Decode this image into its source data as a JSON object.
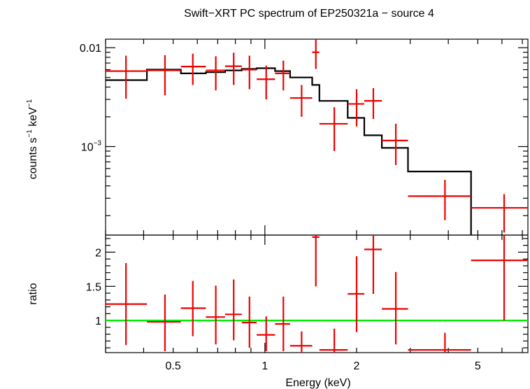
{
  "title": "Swift−XRT PC spectrum of EP250321a − source 4",
  "xlabel": "Energy (keV)",
  "colors": {
    "data": "#ee0000",
    "model": "#000000",
    "unity": "#00ee00",
    "frame": "#000000"
  },
  "chart_data": [
    {
      "type": "line",
      "panel": "spectrum",
      "ylabel_parts": [
        "counts s",
        "−1",
        " keV",
        "−1"
      ],
      "xscale": "log",
      "yscale": "log",
      "xlim": [
        0.3,
        7.3
      ],
      "ylim": [
        0.0001272,
        0.0122
      ],
      "x_ticks": [
        0.5,
        1,
        2,
        5
      ],
      "y_ticks": [
        {
          "value": 0.01,
          "label": "0.01"
        },
        {
          "value": 0.001,
          "base": "10",
          "exp": "−3"
        }
      ],
      "series": [
        {
          "kind": "data",
          "points": [
            {
              "xlo": 0.3,
              "xhi": 0.41,
              "x": 0.35,
              "y": 0.0058,
              "ylo": 0.00305,
              "yhi": 0.0083
            },
            {
              "xlo": 0.41,
              "xhi": 0.53,
              "x": 0.47,
              "y": 0.0059,
              "ylo": 0.0033,
              "yhi": 0.0084
            },
            {
              "xlo": 0.53,
              "xhi": 0.64,
              "x": 0.58,
              "y": 0.00645,
              "ylo": 0.0042,
              "yhi": 0.0087
            },
            {
              "xlo": 0.64,
              "xhi": 0.74,
              "x": 0.69,
              "y": 0.0059,
              "ylo": 0.0037,
              "yhi": 0.0082
            },
            {
              "xlo": 0.74,
              "xhi": 0.84,
              "x": 0.79,
              "y": 0.0065,
              "ylo": 0.0042,
              "yhi": 0.0089
            },
            {
              "xlo": 0.84,
              "xhi": 0.94,
              "x": 0.89,
              "y": 0.006,
              "ylo": 0.0038,
              "yhi": 0.0083
            },
            {
              "xlo": 0.94,
              "xhi": 1.08,
              "x": 1.01,
              "y": 0.0048,
              "ylo": 0.003,
              "yhi": 0.0066
            },
            {
              "xlo": 1.08,
              "xhi": 1.21,
              "x": 1.15,
              "y": 0.0055,
              "ylo": 0.0037,
              "yhi": 0.0074
            },
            {
              "xlo": 1.21,
              "xhi": 1.43,
              "x": 1.32,
              "y": 0.0031,
              "ylo": 0.002,
              "yhi": 0.0042
            },
            {
              "xlo": 1.43,
              "xhi": 1.51,
              "x": 1.47,
              "y": 0.009,
              "ylo": 0.0061,
              "yhi": 0.0122
            },
            {
              "xlo": 1.51,
              "xhi": 1.87,
              "x": 1.69,
              "y": 0.0017,
              "ylo": 0.0009,
              "yhi": 0.0025
            },
            {
              "xlo": 1.87,
              "xhi": 2.12,
              "x": 2.0,
              "y": 0.0027,
              "ylo": 0.0016,
              "yhi": 0.0038
            },
            {
              "xlo": 2.12,
              "xhi": 2.42,
              "x": 2.27,
              "y": 0.0029,
              "ylo": 0.0019,
              "yhi": 0.0039
            },
            {
              "xlo": 2.42,
              "xhi": 2.95,
              "x": 2.69,
              "y": 0.00115,
              "ylo": 0.00065,
              "yhi": 0.0017
            },
            {
              "xlo": 2.95,
              "xhi": 4.75,
              "x": 3.9,
              "y": 0.000315,
              "ylo": 0.00018,
              "yhi": 0.00046
            },
            {
              "xlo": 4.75,
              "xhi": 7.3,
              "x": 6.1,
              "y": 0.00024,
              "ylo": 0.000135,
              "yhi": 0.00033
            }
          ]
        },
        {
          "kind": "model",
          "steps": [
            {
              "xlo": 0.3,
              "xhi": 0.41,
              "y": 0.0047
            },
            {
              "xlo": 0.41,
              "xhi": 0.53,
              "y": 0.006
            },
            {
              "xlo": 0.53,
              "xhi": 0.64,
              "y": 0.0055
            },
            {
              "xlo": 0.64,
              "xhi": 0.74,
              "y": 0.00565
            },
            {
              "xlo": 0.74,
              "xhi": 0.84,
              "y": 0.0059
            },
            {
              "xlo": 0.84,
              "xhi": 0.94,
              "y": 0.0061
            },
            {
              "xlo": 0.94,
              "xhi": 1.08,
              "y": 0.0062
            },
            {
              "xlo": 1.08,
              "xhi": 1.21,
              "y": 0.0058
            },
            {
              "xlo": 1.21,
              "xhi": 1.43,
              "y": 0.005
            },
            {
              "xlo": 1.43,
              "xhi": 1.51,
              "y": 0.0042
            },
            {
              "xlo": 1.51,
              "xhi": 1.87,
              "y": 0.0029
            },
            {
              "xlo": 1.87,
              "xhi": 2.12,
              "y": 0.00195
            },
            {
              "xlo": 2.12,
              "xhi": 2.42,
              "y": 0.0013
            },
            {
              "xlo": 2.42,
              "xhi": 2.95,
              "y": 0.00097
            },
            {
              "xlo": 2.95,
              "xhi": 4.75,
              "y": 0.00056
            },
            {
              "xlo": 4.75,
              "xhi": 7.3,
              "y": 0.0001272
            }
          ]
        }
      ]
    },
    {
      "type": "line",
      "panel": "ratio",
      "ylabel": "ratio",
      "xscale": "log",
      "yscale": "linear",
      "xlim": [
        0.3,
        7.3
      ],
      "ylim": [
        0.53,
        2.25
      ],
      "x_ticks": [
        0.5,
        1,
        2,
        5
      ],
      "x_tick_labels": [
        "0.5",
        "1",
        "2",
        "5"
      ],
      "y_ticks": [
        1,
        1.5,
        2
      ],
      "y_tick_labels": [
        "1",
        "1.5",
        "2"
      ],
      "reference_line": 1,
      "series": [
        {
          "kind": "data",
          "points": [
            {
              "xlo": 0.3,
              "xhi": 0.41,
              "x": 0.35,
              "y": 1.24,
              "ylo": 0.64,
              "yhi": 1.84
            },
            {
              "xlo": 0.41,
              "xhi": 0.53,
              "x": 0.47,
              "y": 0.98,
              "ylo": 0.55,
              "yhi": 1.38
            },
            {
              "xlo": 0.53,
              "xhi": 0.64,
              "x": 0.58,
              "y": 1.18,
              "ylo": 0.77,
              "yhi": 1.58
            },
            {
              "xlo": 0.64,
              "xhi": 0.74,
              "x": 0.69,
              "y": 1.05,
              "ylo": 0.65,
              "yhi": 1.51
            },
            {
              "xlo": 0.74,
              "xhi": 0.84,
              "x": 0.79,
              "y": 1.09,
              "ylo": 0.71,
              "yhi": 1.6
            },
            {
              "xlo": 0.84,
              "xhi": 0.94,
              "x": 0.89,
              "y": 0.97,
              "ylo": 0.6,
              "yhi": 1.35
            },
            {
              "xlo": 0.94,
              "xhi": 1.08,
              "x": 1.01,
              "y": 0.79,
              "ylo": 0.55,
              "yhi": 1.06
            },
            {
              "xlo": 1.08,
              "xhi": 1.21,
              "x": 1.15,
              "y": 0.95,
              "ylo": 0.55,
              "yhi": 1.35
            },
            {
              "xlo": 1.21,
              "xhi": 1.43,
              "x": 1.32,
              "y": 0.63,
              "ylo": 0.53,
              "yhi": 0.84
            },
            {
              "xlo": 1.43,
              "xhi": 1.51,
              "x": 1.47,
              "y": 2.22,
              "ylo": 1.5,
              "yhi": 2.25
            },
            {
              "xlo": 1.51,
              "xhi": 1.87,
              "x": 1.69,
              "y": 0.57,
              "ylo": 0.53,
              "yhi": 0.88
            },
            {
              "xlo": 1.87,
              "xhi": 2.12,
              "x": 2.0,
              "y": 1.39,
              "ylo": 0.83,
              "yhi": 1.94
            },
            {
              "xlo": 2.12,
              "xhi": 2.42,
              "x": 2.27,
              "y": 2.04,
              "ylo": 1.39,
              "yhi": 2.25
            },
            {
              "xlo": 2.42,
              "xhi": 2.95,
              "x": 2.69,
              "y": 1.17,
              "ylo": 0.65,
              "yhi": 1.71
            },
            {
              "xlo": 2.95,
              "xhi": 4.75,
              "x": 3.9,
              "y": 0.57,
              "ylo": 0.53,
              "yhi": 0.82
            },
            {
              "xlo": 4.75,
              "xhi": 7.3,
              "x": 6.1,
              "y": 1.88,
              "ylo": 1.0,
              "yhi": 2.25
            }
          ]
        }
      ]
    }
  ]
}
